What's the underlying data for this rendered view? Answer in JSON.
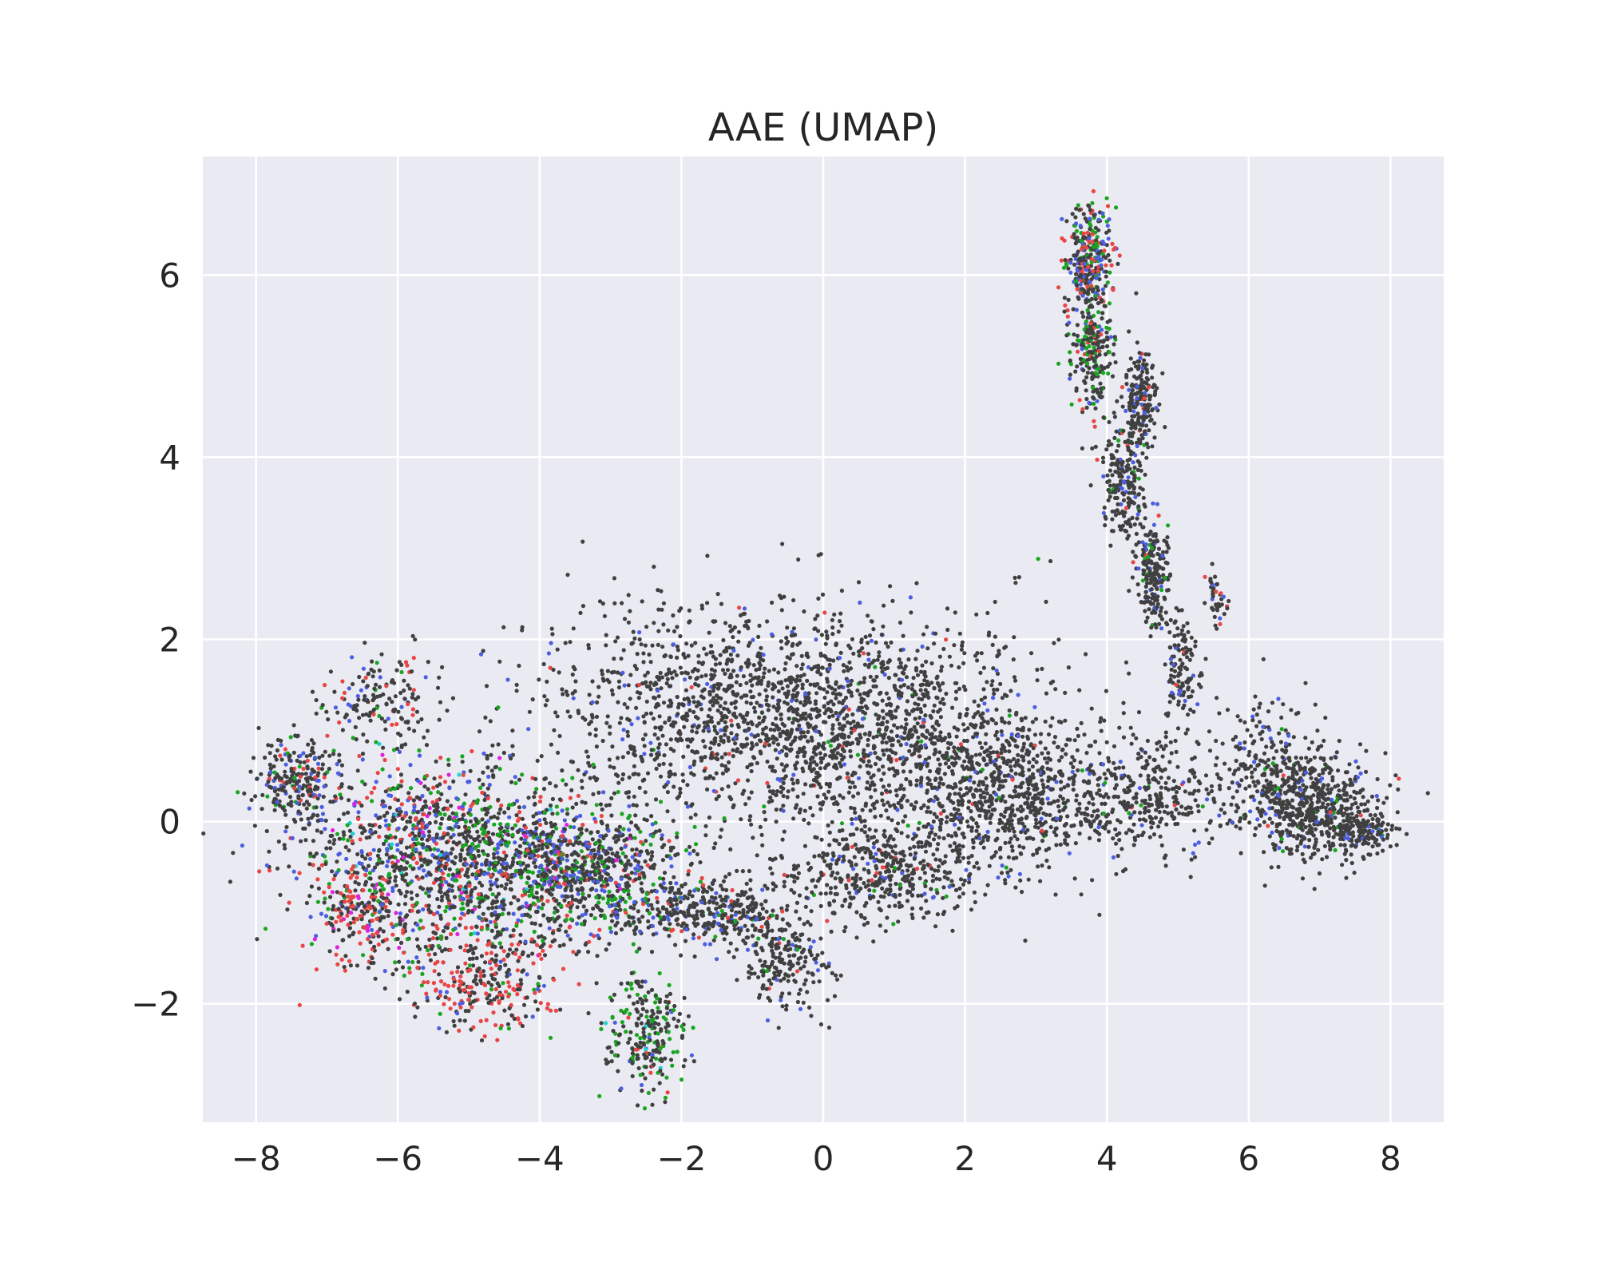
{
  "chart_data": {
    "type": "scatter",
    "title": "AAE (UMAP)",
    "xlabel": "",
    "ylabel": "",
    "xlim": [
      -8.75,
      8.75
    ],
    "ylim": [
      -3.3,
      7.3
    ],
    "x_ticks": [
      -8,
      -6,
      -4,
      -2,
      0,
      2,
      4,
      6,
      8
    ],
    "x_tick_labels": [
      "−8",
      "−6",
      "−4",
      "−2",
      "0",
      "2",
      "4",
      "6",
      "8"
    ],
    "y_ticks": [
      -2,
      0,
      2,
      4,
      6
    ],
    "y_tick_labels": [
      "−2",
      "0",
      "2",
      "4",
      "6"
    ],
    "grid": true,
    "background_color": "#eaeaf2",
    "grid_color": "#ffffff",
    "point_colors": {
      "majority": "#404040",
      "blue": "#4c5ee0",
      "red": "#e84545",
      "green": "#1aa521",
      "magenta": "#e020e0",
      "cyan": "#20d0d0"
    },
    "clusters": [
      {
        "cx": -0.8,
        "cy": 1.2,
        "sx": 1.9,
        "sy": 0.7,
        "n": 1700,
        "w": {
          "majority": 0.93,
          "blue": 0.05,
          "red": 0.01,
          "green": 0.01
        }
      },
      {
        "cx": 1.3,
        "cy": 0.7,
        "sx": 1.3,
        "sy": 0.8,
        "n": 700,
        "w": {
          "majority": 0.94,
          "blue": 0.04,
          "red": 0.01,
          "green": 0.01
        }
      },
      {
        "cx": -5.4,
        "cy": -0.4,
        "sx": 1.1,
        "sy": 0.65,
        "n": 1300,
        "w": {
          "majority": 0.55,
          "blue": 0.14,
          "red": 0.13,
          "green": 0.14,
          "magenta": 0.03,
          "cyan": 0.01
        }
      },
      {
        "cx": -3.4,
        "cy": -0.55,
        "sx": 0.9,
        "sy": 0.45,
        "n": 900,
        "w": {
          "majority": 0.58,
          "blue": 0.17,
          "red": 0.07,
          "green": 0.16,
          "magenta": 0.02
        }
      },
      {
        "cx": -7.4,
        "cy": 0.4,
        "sx": 0.35,
        "sy": 0.3,
        "n": 250,
        "w": {
          "majority": 0.75,
          "blue": 0.12,
          "red": 0.08,
          "green": 0.05
        }
      },
      {
        "cx": -6.3,
        "cy": 1.3,
        "sx": 0.45,
        "sy": 0.3,
        "n": 150,
        "w": {
          "majority": 0.72,
          "blue": 0.14,
          "red": 0.1,
          "green": 0.04
        }
      },
      {
        "cx": -6.6,
        "cy": -1.1,
        "sx": 0.35,
        "sy": 0.35,
        "n": 150,
        "w": {
          "majority": 0.45,
          "red": 0.4,
          "blue": 0.1,
          "magenta": 0.05
        }
      },
      {
        "cx": -4.8,
        "cy": -1.8,
        "sx": 0.6,
        "sy": 0.3,
        "n": 250,
        "w": {
          "majority": 0.45,
          "red": 0.45,
          "blue": 0.05,
          "green": 0.05
        }
      },
      {
        "cx": -2.5,
        "cy": -2.35,
        "sx": 0.35,
        "sy": 0.35,
        "n": 250,
        "w": {
          "majority": 0.6,
          "green": 0.3,
          "blue": 0.05,
          "red": 0.03,
          "cyan": 0.02
        }
      },
      {
        "cx": -1.6,
        "cy": -1.0,
        "sx": 0.6,
        "sy": 0.2,
        "n": 350,
        "w": {
          "majority": 0.8,
          "blue": 0.12,
          "green": 0.05,
          "red": 0.03
        }
      },
      {
        "cx": -0.55,
        "cy": -1.55,
        "sx": 0.35,
        "sy": 0.3,
        "n": 200,
        "w": {
          "majority": 0.88,
          "blue": 0.08,
          "red": 0.02,
          "green": 0.02
        }
      },
      {
        "cx": 0.8,
        "cy": -0.6,
        "sx": 0.8,
        "sy": 0.3,
        "n": 400,
        "w": {
          "majority": 0.88,
          "blue": 0.06,
          "green": 0.04,
          "red": 0.02
        }
      },
      {
        "cx": 2.6,
        "cy": 0.3,
        "sx": 0.7,
        "sy": 0.5,
        "n": 500,
        "w": {
          "majority": 0.92,
          "blue": 0.05,
          "green": 0.02,
          "red": 0.01
        }
      },
      {
        "cx": 4.4,
        "cy": 0.3,
        "sx": 0.8,
        "sy": 0.4,
        "n": 400,
        "w": {
          "majority": 0.93,
          "blue": 0.04,
          "green": 0.02,
          "red": 0.01
        }
      },
      {
        "cx": 6.9,
        "cy": 0.2,
        "sx": 0.5,
        "sy": 0.35,
        "n": 550,
        "w": {
          "majority": 0.9,
          "blue": 0.06,
          "green": 0.03,
          "red": 0.01
        }
      },
      {
        "cx": 6.2,
        "cy": 0.6,
        "sx": 0.4,
        "sy": 0.45,
        "n": 200,
        "w": {
          "majority": 0.92,
          "blue": 0.05,
          "green": 0.02,
          "red": 0.01
        }
      },
      {
        "cx": 7.6,
        "cy": -0.1,
        "sx": 0.25,
        "sy": 0.15,
        "n": 150,
        "w": {
          "majority": 0.92,
          "blue": 0.05,
          "green": 0.02,
          "red": 0.01
        }
      },
      {
        "cx": 3.75,
        "cy": 6.2,
        "sx": 0.2,
        "sy": 0.35,
        "n": 300,
        "w": {
          "majority": 0.5,
          "red": 0.22,
          "blue": 0.15,
          "green": 0.13
        }
      },
      {
        "cx": 3.8,
        "cy": 5.2,
        "sx": 0.18,
        "sy": 0.45,
        "n": 250,
        "w": {
          "majority": 0.6,
          "green": 0.2,
          "blue": 0.12,
          "red": 0.08
        }
      },
      {
        "cx": 4.45,
        "cy": 4.6,
        "sx": 0.15,
        "sy": 0.35,
        "n": 200,
        "w": {
          "majority": 0.85,
          "blue": 0.1,
          "red": 0.03,
          "green": 0.02
        }
      },
      {
        "cx": 4.25,
        "cy": 3.7,
        "sx": 0.18,
        "sy": 0.35,
        "n": 200,
        "w": {
          "majority": 0.85,
          "blue": 0.1,
          "green": 0.03,
          "red": 0.02
        }
      },
      {
        "cx": 4.65,
        "cy": 2.7,
        "sx": 0.14,
        "sy": 0.35,
        "n": 200,
        "w": {
          "majority": 0.85,
          "blue": 0.08,
          "green": 0.05,
          "red": 0.02
        }
      },
      {
        "cx": 5.05,
        "cy": 1.7,
        "sx": 0.14,
        "sy": 0.35,
        "n": 120,
        "w": {
          "majority": 0.9,
          "blue": 0.07,
          "red": 0.03
        }
      },
      {
        "cx": 5.55,
        "cy": 2.45,
        "sx": 0.1,
        "sy": 0.2,
        "n": 40,
        "w": {
          "majority": 0.8,
          "blue": 0.1,
          "red": 0.1
        }
      }
    ]
  }
}
